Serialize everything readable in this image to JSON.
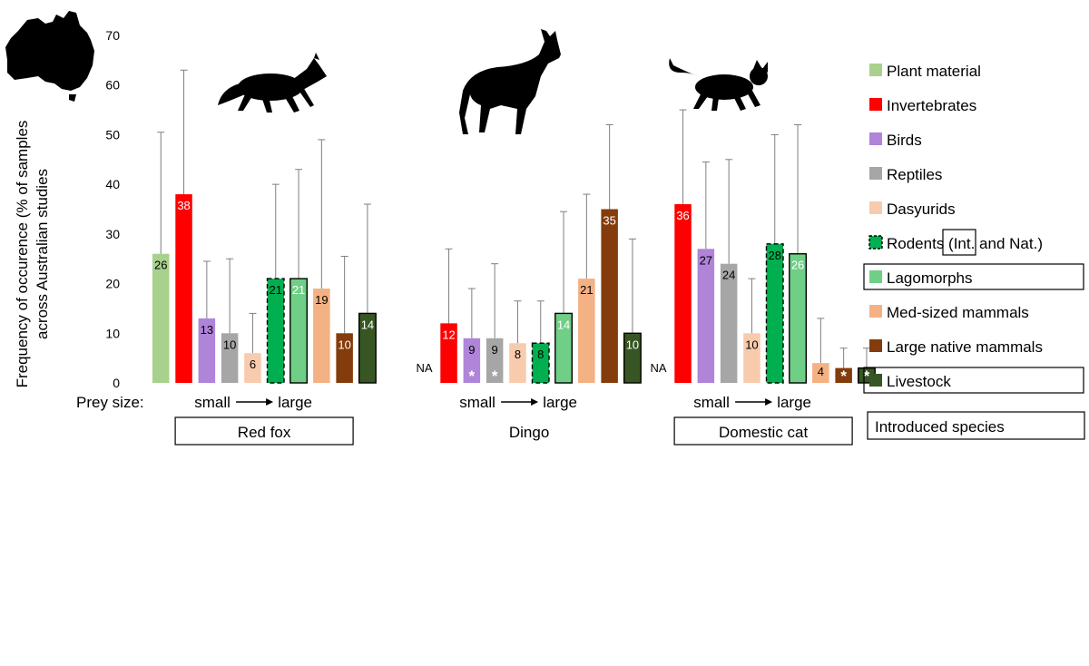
{
  "chart_data": {
    "type": "bar",
    "ylabel_lines": [
      "Frequency of occurence (% of samples",
      "across Australian studies"
    ],
    "ylim": [
      0,
      70
    ],
    "yticks": [
      0,
      10,
      20,
      30,
      40,
      50,
      60,
      70
    ],
    "prey_size_label": "Prey size:",
    "prey_size_small": "small",
    "prey_size_large": "large",
    "categories": [
      "Plant material",
      "Invertebrates",
      "Birds",
      "Reptiles",
      "Dasyurids",
      "Rodents (Int. and Nat.)",
      "Lagomorphs",
      "Med-sized mammals",
      "Large native mammals",
      "Livestock"
    ],
    "category_colors": [
      "#a9d18e",
      "#ff0000",
      "#b084d9",
      "#a6a6a6",
      "#f8cbad",
      "#00b050",
      "#6fcf86",
      "#f4b183",
      "#843c0c",
      "#375623"
    ],
    "introduced_flags": [
      false,
      false,
      false,
      false,
      false,
      "partial",
      true,
      false,
      false,
      true
    ],
    "label_text_colors": [
      "#000000",
      "#ffffff",
      "#000000",
      "#000000",
      "#000000",
      "#000000",
      "#ffffff",
      "#000000",
      "#ffffff",
      "#ffffff"
    ],
    "na_label": "NA",
    "star_label": "*",
    "groups": [
      {
        "name": "Red fox",
        "introduced": true,
        "values": [
          26,
          38,
          13,
          10,
          6,
          21,
          21,
          19,
          10,
          14
        ],
        "value_labels": [
          "26",
          "38",
          "13",
          "10",
          "6",
          "21",
          "21",
          "19",
          "10",
          "14"
        ],
        "error_upper": [
          50.5,
          63,
          24.5,
          25,
          14,
          40,
          43,
          49,
          25.5,
          36
        ],
        "na": [
          false,
          false,
          false,
          false,
          false,
          false,
          false,
          false,
          false,
          false
        ],
        "star": [
          false,
          false,
          false,
          false,
          false,
          false,
          false,
          false,
          false,
          false
        ]
      },
      {
        "name": "Dingo",
        "introduced": false,
        "values": [
          null,
          12,
          9,
          9,
          8,
          8,
          14,
          21,
          35,
          10
        ],
        "value_labels": [
          "",
          "12",
          "9",
          "9",
          "8",
          "8",
          "14",
          "21",
          "35",
          "10"
        ],
        "error_upper": [
          null,
          27,
          19,
          24,
          16.5,
          16.5,
          34.5,
          38,
          52,
          29
        ],
        "na": [
          true,
          false,
          false,
          false,
          false,
          false,
          false,
          false,
          false,
          false
        ],
        "star": [
          false,
          false,
          true,
          true,
          false,
          false,
          false,
          false,
          false,
          false
        ]
      },
      {
        "name": "Domestic cat",
        "introduced": true,
        "values": [
          null,
          36,
          27,
          24,
          10,
          28,
          26,
          4,
          3,
          3
        ],
        "value_labels": [
          "",
          "36",
          "27",
          "24",
          "10",
          "28",
          "26",
          "4",
          "",
          ""
        ],
        "error_upper": [
          null,
          55,
          44.5,
          45,
          21,
          50,
          52,
          13,
          7,
          7
        ],
        "na": [
          true,
          false,
          false,
          false,
          false,
          false,
          false,
          false,
          false,
          false
        ],
        "star": [
          false,
          false,
          false,
          false,
          false,
          false,
          false,
          false,
          true,
          true
        ]
      }
    ],
    "legend": {
      "position": "right",
      "items": [
        {
          "label": "Plant material"
        },
        {
          "label": "Invertebrates"
        },
        {
          "label": "Birds"
        },
        {
          "label": "Reptiles"
        },
        {
          "label": "Dasyurids"
        },
        {
          "label_parts": [
            "Rodents (",
            "Int.",
            " and Nat.)"
          ]
        },
        {
          "label": "Lagomorphs"
        },
        {
          "label": "Med-sized mammals"
        },
        {
          "label": "Large native mammals"
        },
        {
          "label": "Livestock"
        }
      ],
      "introduced_key": "Introduced species"
    }
  },
  "colors": {
    "axis_text": "#000000",
    "error_bar": "#7f7f7f",
    "silhouette": "#000000"
  }
}
